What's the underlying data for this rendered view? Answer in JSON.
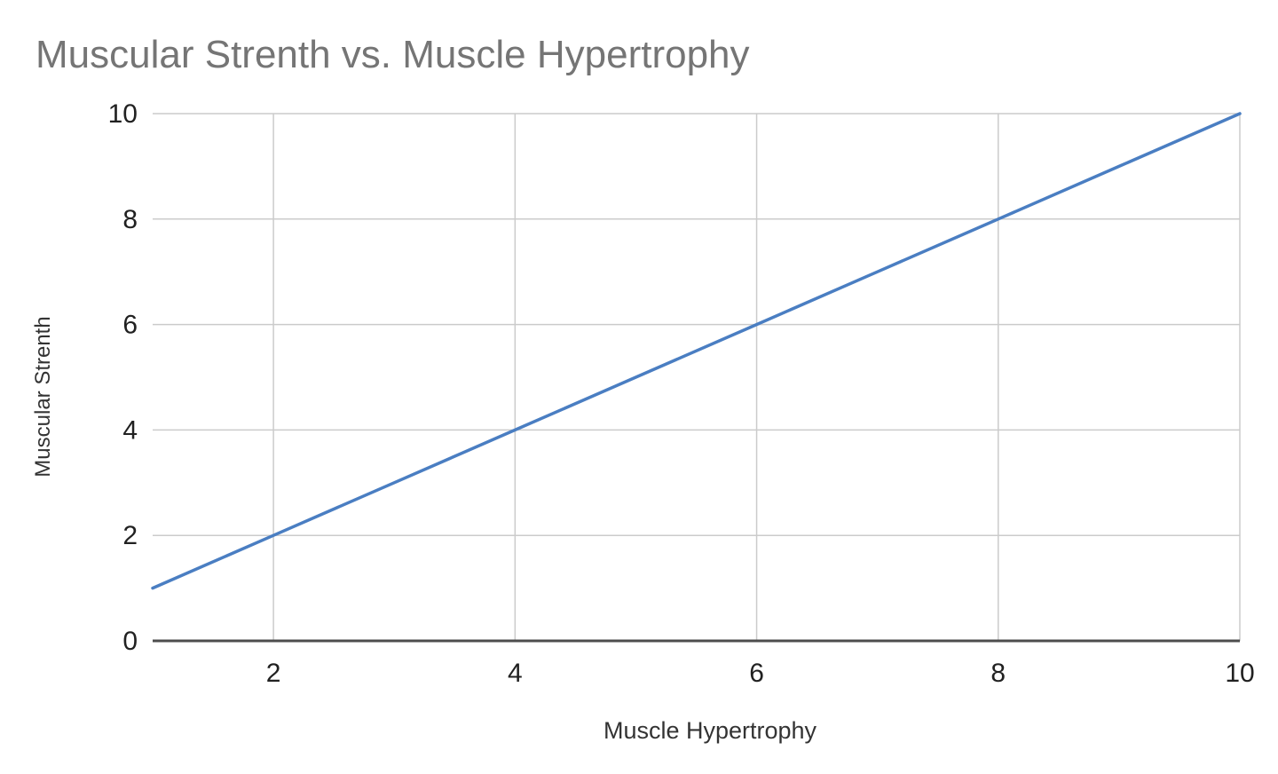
{
  "chart_data": {
    "type": "line",
    "title": "Muscular Strenth vs. Muscle Hypertrophy",
    "xlabel": "Muscle Hypertrophy",
    "ylabel": "Muscular Strenth",
    "x": [
      1,
      2,
      3,
      4,
      5,
      6,
      7,
      8,
      9,
      10
    ],
    "series": [
      {
        "name": "Muscular Strenth",
        "values": [
          1,
          2,
          3,
          4,
          5,
          6,
          7,
          8,
          9,
          10
        ]
      }
    ],
    "xlim": [
      1,
      10
    ],
    "ylim": [
      0,
      10
    ],
    "x_ticks": [
      2,
      4,
      6,
      8,
      10
    ],
    "y_ticks": [
      0,
      2,
      4,
      6,
      8,
      10
    ],
    "grid": true,
    "legend": false,
    "colors": {
      "line": "#4a7ec2",
      "grid": "#cbcbcb",
      "axis_line": "#4d4d4d",
      "title": "#757575",
      "tick_label": "#212121",
      "axis_title": "#333333"
    }
  }
}
